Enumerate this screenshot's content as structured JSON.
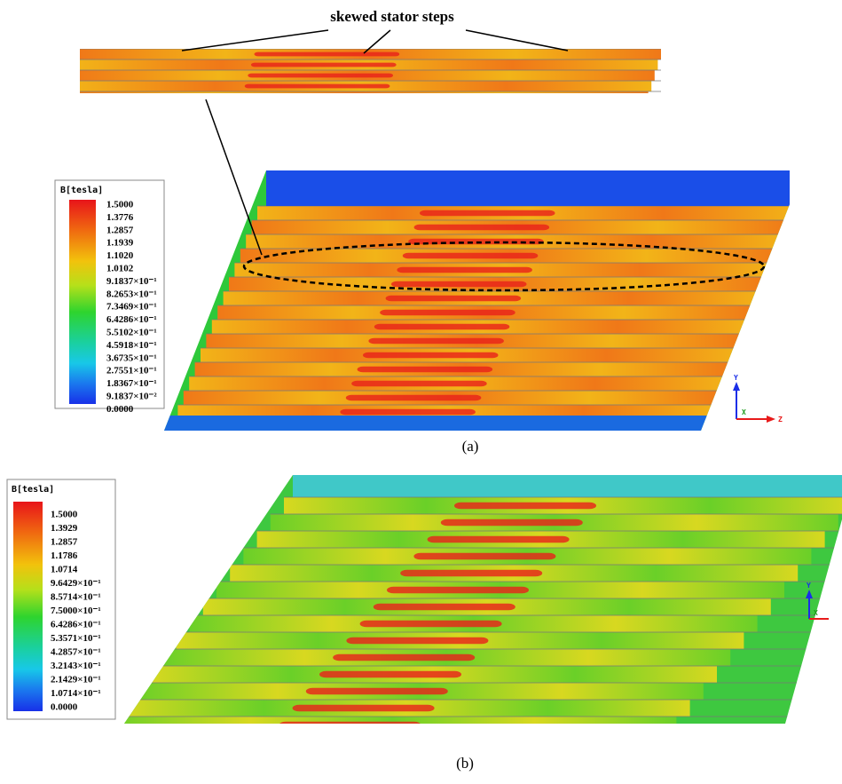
{
  "figure": {
    "annotation": "skewed stator steps",
    "panel_a": {
      "label": "(a)",
      "legend_title": "B[tesla]",
      "legend_labels": [
        "1.5000",
        "1.3776",
        "1.2857",
        "1.1939",
        "1.1020",
        "1.0102",
        "9.1837×10⁻¹",
        "8.2653×10⁻¹",
        "7.3469×10⁻¹",
        "6.4286×10⁻¹",
        "5.5102×10⁻¹",
        "4.5918×10⁻¹",
        "3.6735×10⁻¹",
        "2.7551×10⁻¹",
        "1.8367×10⁻¹",
        "9.1837×10⁻²",
        "0.0000"
      ],
      "axes": {
        "y": "Y",
        "x": "X",
        "z": "Z"
      }
    },
    "panel_b": {
      "label": "(b)",
      "legend_title": "B[tesla]",
      "legend_labels": [
        "1.5000",
        "1.3929",
        "1.2857",
        "1.1786",
        "1.0714",
        "9.6429×10⁻¹",
        "8.5714×10⁻¹",
        "7.5000×10⁻¹",
        "6.4286×10⁻¹",
        "5.3571×10⁻¹",
        "4.2857×10⁻¹",
        "3.2143×10⁻¹",
        "2.1429×10⁻¹",
        "1.0714×10⁻¹",
        "0.0000"
      ],
      "axes": {
        "y": "Y",
        "x": "X"
      }
    }
  }
}
